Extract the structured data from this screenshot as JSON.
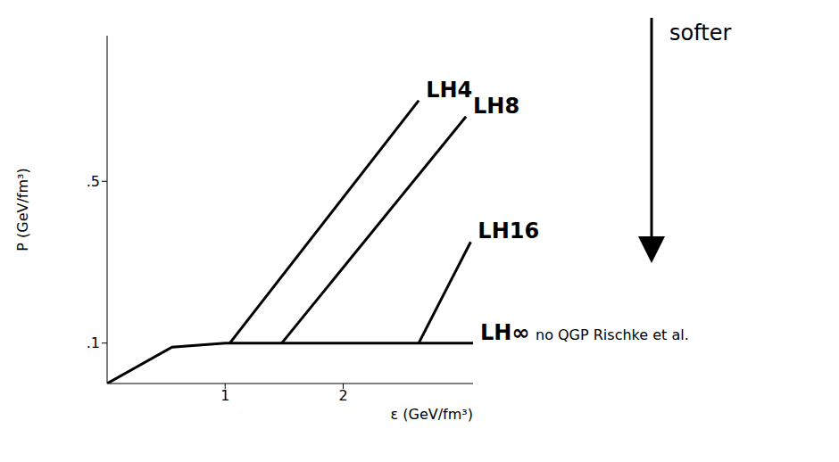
{
  "chart_data": {
    "type": "line",
    "x_label": "ε (GeV/fm³)",
    "y_label": "P (GeV/fm³)",
    "xlim": [
      0,
      3.1
    ],
    "ylim": [
      0,
      0.86
    ],
    "xticks": [
      1,
      2
    ],
    "yticks": [
      {
        "value": 0.1,
        "label": ".1"
      },
      {
        "value": 0.5,
        "label": ".5"
      }
    ],
    "grid": false,
    "series": [
      {
        "name": "LH4",
        "color": "#000000",
        "x": [
          1.04,
          2.64
        ],
        "values": [
          0.1,
          0.7
        ]
      },
      {
        "name": "LH8",
        "color": "#000000",
        "x": [
          1.48,
          3.04
        ],
        "values": [
          0.1,
          0.66
        ]
      },
      {
        "name": "LH16",
        "color": "#000000",
        "x": [
          2.64,
          3.08
        ],
        "values": [
          0.1,
          0.35
        ]
      },
      {
        "name": "LH∞",
        "color": "#000000",
        "x": [
          0,
          0.55,
          1.0,
          3.1
        ],
        "values": [
          0,
          0.09,
          0.1,
          0.1
        ]
      }
    ],
    "annotations": [
      "softer",
      "no QGP Rischke et al."
    ]
  }
}
